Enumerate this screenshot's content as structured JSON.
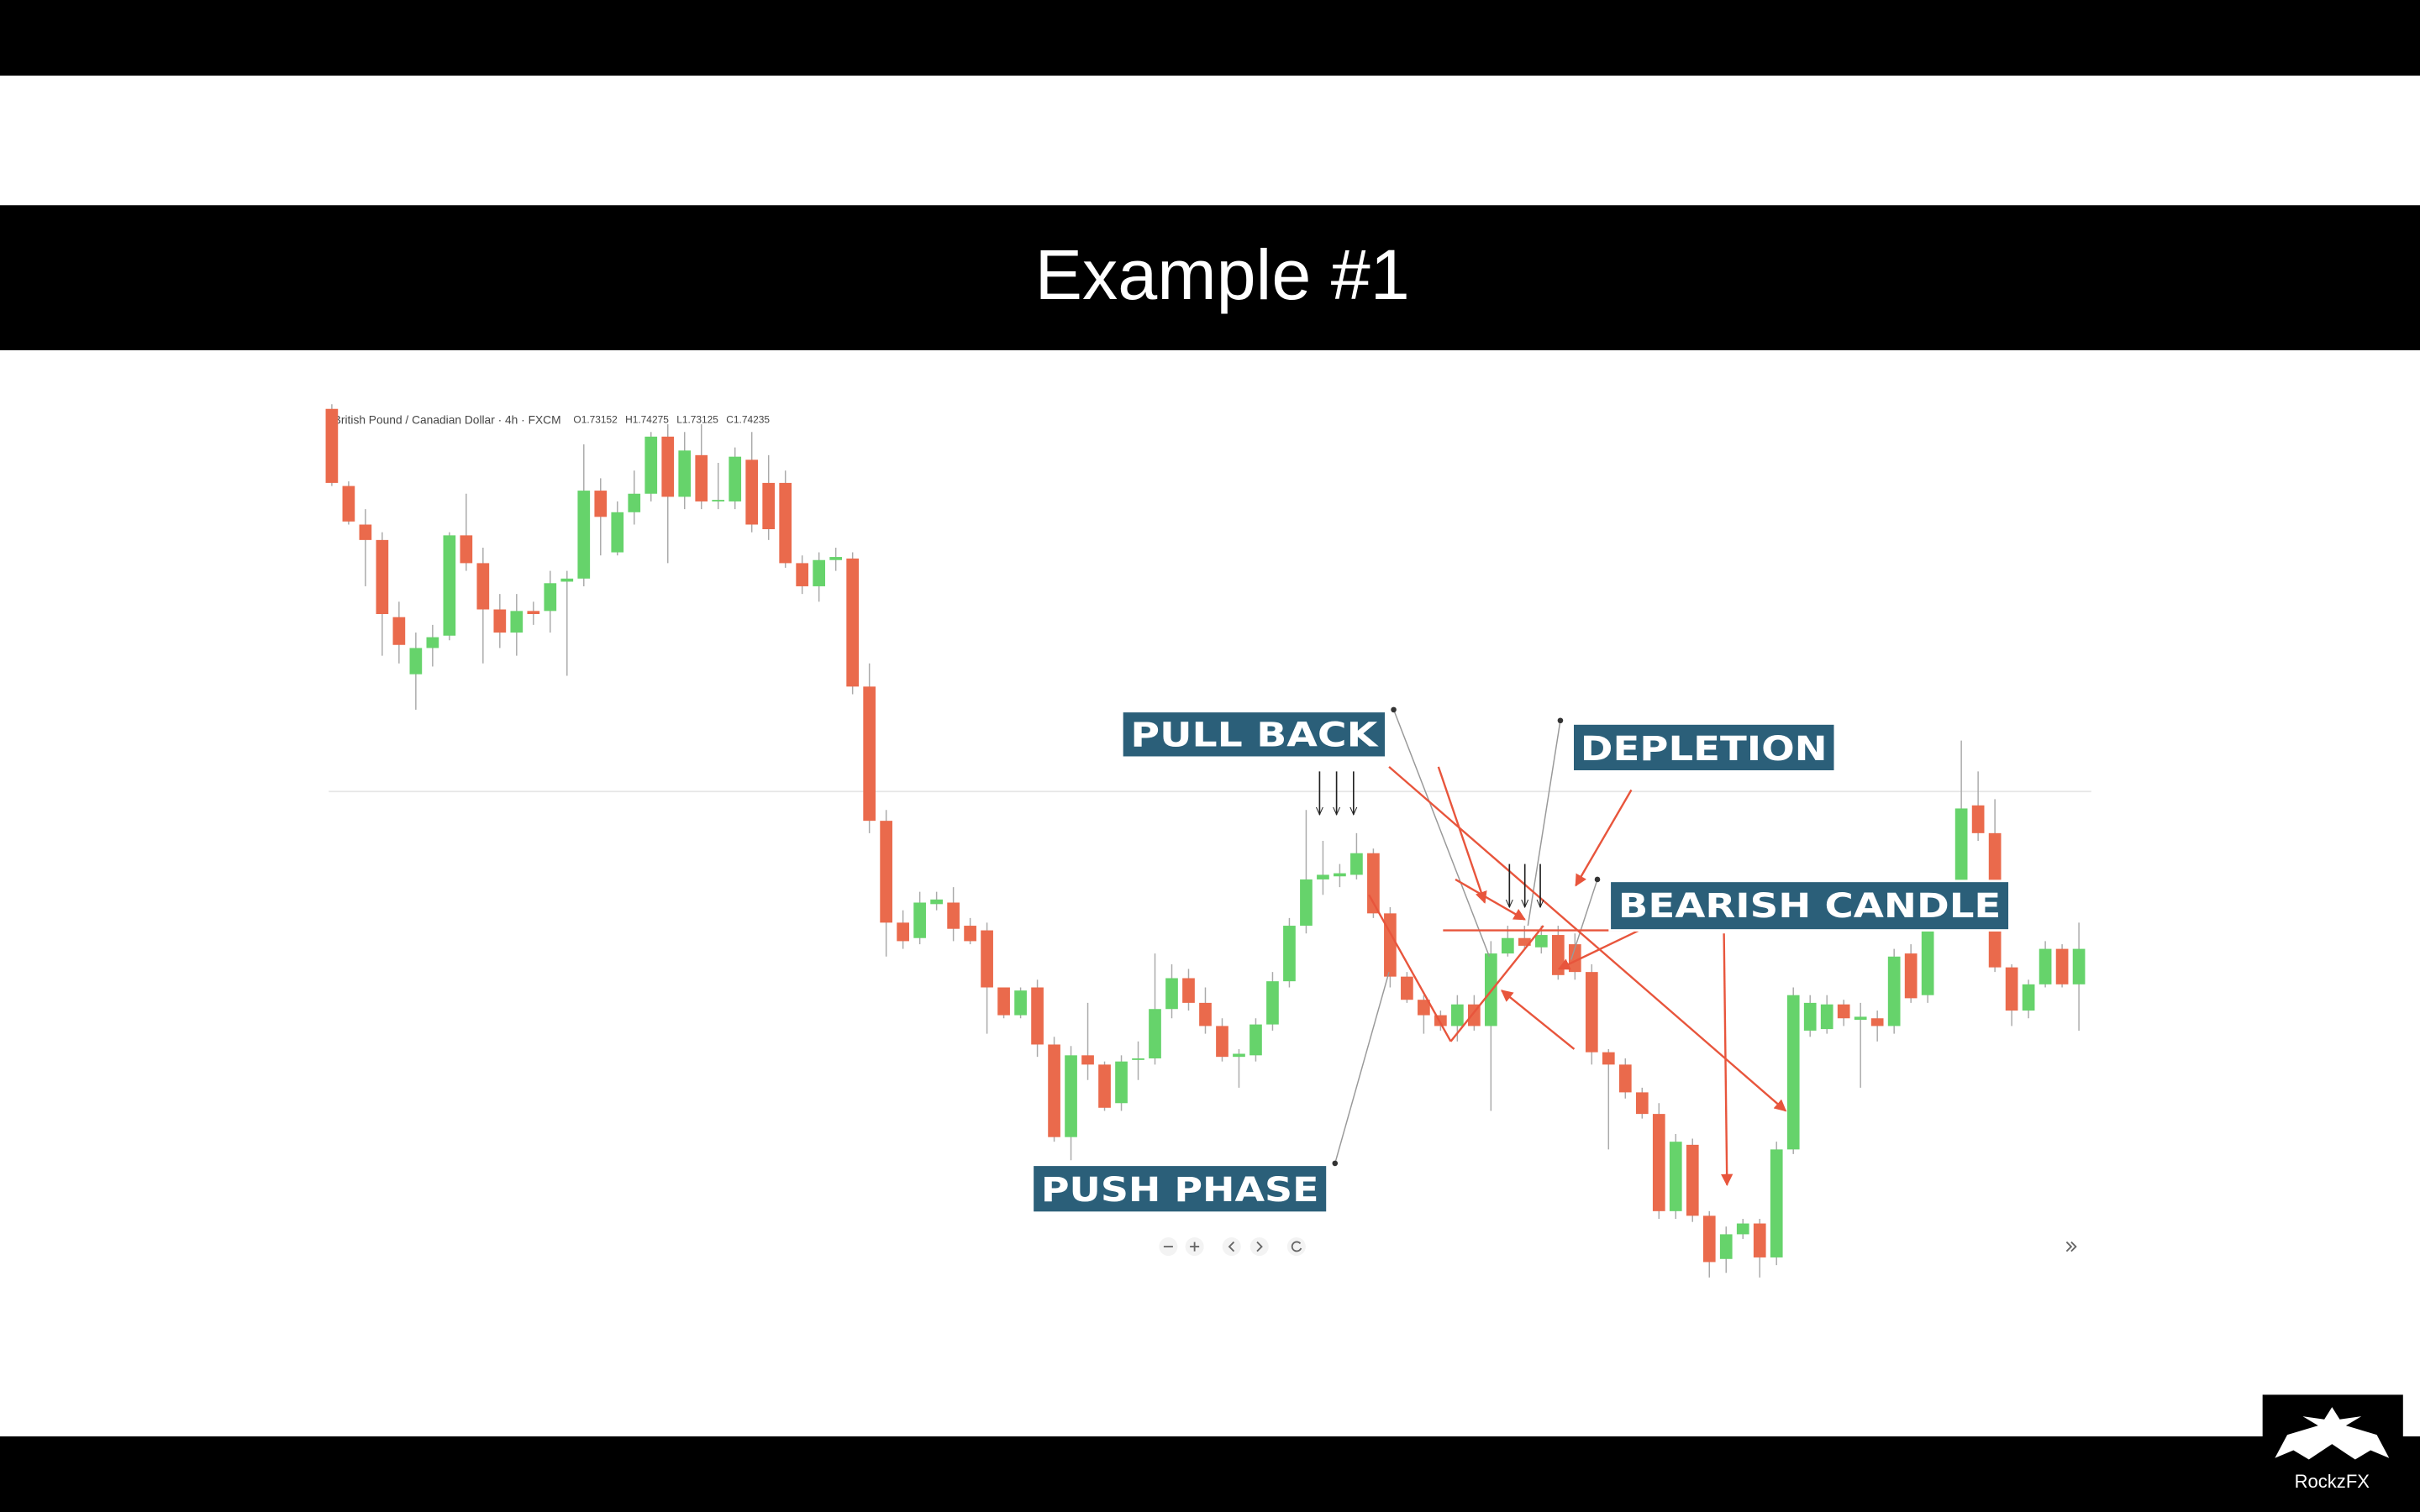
{
  "slide": {
    "title": "Example #1",
    "logo": "RockzFX"
  },
  "chart_data": {
    "type": "candlestick",
    "title": "British Pound / Canadian Dollar · 4h · FXCM",
    "ohlc_labels": [
      "O1.73152",
      "H1.74275",
      "L1.73125",
      "C1.74235"
    ],
    "annotations": [
      "PULL BACK",
      "DEPLETION",
      "BEARISH CANDLE",
      "PUSH PHASE"
    ],
    "up_color": "#66d36b",
    "down_color": "#ea6a4c",
    "ylim": [
      1.72,
      1.78
    ],
    "open": [
      1.7774,
      1.7724,
      1.7699,
      1.7689,
      1.7639,
      1.7602,
      1.7619,
      1.7627,
      1.7692,
      1.7674,
      1.7644,
      1.7629,
      1.7643,
      1.7643,
      1.7662,
      1.7664,
      1.7721,
      1.7681,
      1.7707,
      1.7719,
      1.7756,
      1.7717,
      1.7744,
      1.7714,
      1.7714,
      1.7741,
      1.7726,
      1.7726,
      1.7674,
      1.7659,
      1.7676,
      1.7677,
      1.7594,
      1.7507,
      1.7441,
      1.7431,
      1.7453,
      1.7454,
      1.7439,
      1.7436,
      1.7399,
      1.7381,
      1.7399,
      1.7362,
      1.7302,
      1.7355,
      1.7349,
      1.7324,
      1.7352,
      1.7353,
      1.7385,
      1.7405,
      1.7389,
      1.7374,
      1.7354,
      1.7355,
      1.7375,
      1.7403,
      1.7439,
      1.7469,
      1.7471,
      1.7472,
      1.7486,
      1.7447,
      1.7406,
      1.7391,
      1.7381,
      1.7374,
      1.7388,
      1.7374,
      1.7421,
      1.7431,
      1.7425,
      1.7433,
      1.7427,
      1.7409,
      1.7357,
      1.7349,
      1.7331,
      1.7317,
      1.7254,
      1.7297,
      1.7251,
      1.7223,
      1.7239,
      1.7246,
      1.7224,
      1.7294,
      1.7371,
      1.7372,
      1.7388,
      1.7378,
      1.7379,
      1.7374,
      1.7421,
      1.7394,
      1.7439,
      1.7452,
      1.7517,
      1.7499,
      1.7412,
      1.7384,
      1.7401,
      1.7424,
      1.7401
    ],
    "high": [
      1.7777,
      1.7727,
      1.7709,
      1.7694,
      1.7649,
      1.7629,
      1.7634,
      1.7694,
      1.7719,
      1.7684,
      1.7654,
      1.7654,
      1.7649,
      1.7669,
      1.7669,
      1.7751,
      1.7729,
      1.7714,
      1.7734,
      1.7759,
      1.7764,
      1.7759,
      1.7764,
      1.7739,
      1.7749,
      1.7759,
      1.7744,
      1.7734,
      1.7679,
      1.7681,
      1.7684,
      1.7681,
      1.7609,
      1.7514,
      1.7449,
      1.7461,
      1.7461,
      1.7464,
      1.7444,
      1.7441,
      1.7399,
      1.7399,
      1.7404,
      1.7367,
      1.7361,
      1.7389,
      1.7351,
      1.7355,
      1.7364,
      1.7421,
      1.7414,
      1.7411,
      1.7399,
      1.7379,
      1.7359,
      1.7379,
      1.7409,
      1.7444,
      1.7514,
      1.7494,
      1.7479,
      1.7499,
      1.7489,
      1.7451,
      1.7409,
      1.7394,
      1.7384,
      1.7394,
      1.7394,
      1.7429,
      1.7439,
      1.7439,
      1.7439,
      1.7439,
      1.7434,
      1.7414,
      1.7359,
      1.7353,
      1.7334,
      1.7324,
      1.7304,
      1.7301,
      1.7254,
      1.7244,
      1.7249,
      1.7249,
      1.7299,
      1.7399,
      1.7394,
      1.7394,
      1.7391,
      1.7389,
      1.7384,
      1.7424,
      1.7427,
      1.7441,
      1.7454,
      1.7559,
      1.7539,
      1.7521,
      1.7414,
      1.7404,
      1.7429,
      1.7427,
      1.7441
    ],
    "low": [
      1.7724,
      1.7699,
      1.7659,
      1.7614,
      1.7609,
      1.7579,
      1.7607,
      1.7624,
      1.7669,
      1.7609,
      1.7619,
      1.7614,
      1.7634,
      1.7629,
      1.7601,
      1.7659,
      1.7679,
      1.7679,
      1.7699,
      1.7714,
      1.7674,
      1.7709,
      1.7709,
      1.7709,
      1.7709,
      1.7694,
      1.7689,
      1.7671,
      1.7654,
      1.7649,
      1.7669,
      1.7589,
      1.7499,
      1.7419,
      1.7424,
      1.7427,
      1.7449,
      1.7429,
      1.7427,
      1.7369,
      1.7379,
      1.7379,
      1.7354,
      1.7299,
      1.7287,
      1.7339,
      1.7319,
      1.7319,
      1.7339,
      1.7349,
      1.7379,
      1.7384,
      1.7369,
      1.7351,
      1.7334,
      1.7351,
      1.7371,
      1.7399,
      1.7434,
      1.7459,
      1.7464,
      1.7469,
      1.7444,
      1.7399,
      1.7389,
      1.7369,
      1.7371,
      1.7364,
      1.7371,
      1.7319,
      1.7419,
      1.7424,
      1.7421,
      1.7404,
      1.7404,
      1.7349,
      1.7294,
      1.7327,
      1.7314,
      1.7249,
      1.7249,
      1.7247,
      1.7211,
      1.7214,
      1.7236,
      1.7211,
      1.7219,
      1.7291,
      1.7367,
      1.7369,
      1.7374,
      1.7334,
      1.7364,
      1.7369,
      1.7389,
      1.7389,
      1.7436,
      1.7449,
      1.7494,
      1.7409,
      1.7374,
      1.7379,
      1.7399,
      1.7399,
      1.7371
    ],
    "close": [
      1.7726,
      1.7701,
      1.7689,
      1.7641,
      1.7621,
      1.7619,
      1.7626,
      1.7692,
      1.7674,
      1.7644,
      1.7629,
      1.7643,
      1.7641,
      1.7661,
      1.7664,
      1.7721,
      1.7704,
      1.7707,
      1.7719,
      1.7756,
      1.7717,
      1.7747,
      1.7714,
      1.7715,
      1.7743,
      1.7699,
      1.7696,
      1.7674,
      1.7659,
      1.7676,
      1.7678,
      1.7594,
      1.7507,
      1.7441,
      1.7429,
      1.7454,
      1.7456,
      1.7437,
      1.7429,
      1.7399,
      1.7381,
      1.7397,
      1.7362,
      1.7302,
      1.7355,
      1.7349,
      1.7321,
      1.7351,
      1.7353,
      1.7385,
      1.7405,
      1.7389,
      1.7374,
      1.7354,
      1.7356,
      1.7375,
      1.7403,
      1.7439,
      1.7469,
      1.7472,
      1.7473,
      1.7486,
      1.7447,
      1.7406,
      1.7391,
      1.7381,
      1.7374,
      1.7388,
      1.7374,
      1.7421,
      1.7431,
      1.7426,
      1.7433,
      1.7407,
      1.7409,
      1.7357,
      1.7349,
      1.7331,
      1.7317,
      1.7254,
      1.7299,
      1.7251,
      1.7221,
      1.7239,
      1.7246,
      1.7224,
      1.7294,
      1.7394,
      1.7389,
      1.7388,
      1.7379,
      1.738,
      1.7374,
      1.7419,
      1.7392,
      1.7439,
      1.7452,
      1.7515,
      1.7499,
      1.7412,
      1.7384,
      1.7401,
      1.7424,
      1.7401,
      1.7424
    ]
  }
}
